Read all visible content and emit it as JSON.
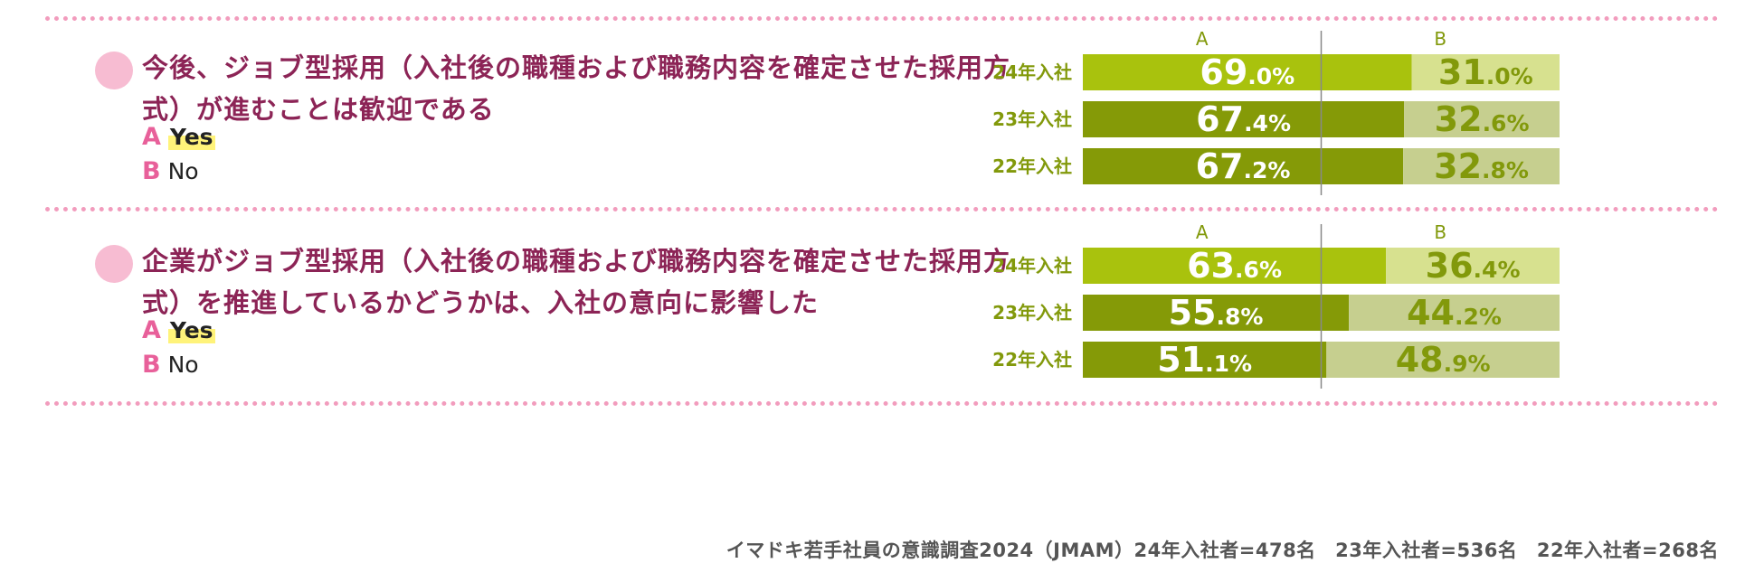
{
  "colors": {
    "a_bars": [
      "#a9c20d",
      "#859a07",
      "#859a07"
    ],
    "b_bars": [
      "#d7e18f",
      "#c6cf8f",
      "#c6cf8f"
    ],
    "row_label": "#82990b",
    "b_text": "#82990b"
  },
  "questions": [
    {
      "text": "今後、ジョブ型採用（入社後の職種および職務内容を確定させた採用方式）が進むことは歓迎である",
      "options": [
        {
          "letter": "A",
          "label": "Yes"
        },
        {
          "letter": "B",
          "label": "No"
        }
      ]
    },
    {
      "text": "企業がジョブ型採用（入社後の職種および職務内容を確定させた採用方式）を推進しているかどうかは、入社の意向に影響した",
      "options": [
        {
          "letter": "A",
          "label": "Yes"
        },
        {
          "letter": "B",
          "label": "No"
        }
      ]
    }
  ],
  "chart_data": [
    {
      "type": "bar",
      "orientation": "horizontal-stacked-100",
      "categories": [
        "24年入社",
        "23年入社",
        "22年入社"
      ],
      "series": [
        {
          "name": "A",
          "values": [
            69.0,
            67.4,
            67.2
          ]
        },
        {
          "name": "B",
          "values": [
            31.0,
            32.6,
            32.8
          ]
        }
      ],
      "xlim": [
        0,
        100
      ],
      "reference_line": 50,
      "value_labels": {
        "A": [
          [
            "69",
            ".0%"
          ],
          [
            "67",
            ".4%"
          ],
          [
            "67",
            ".2%"
          ]
        ],
        "B": [
          [
            "31",
            ".0%"
          ],
          [
            "32",
            ".6%"
          ],
          [
            "32",
            ".8%"
          ]
        ]
      }
    },
    {
      "type": "bar",
      "orientation": "horizontal-stacked-100",
      "categories": [
        "24年入社",
        "23年入社",
        "22年入社"
      ],
      "series": [
        {
          "name": "A",
          "values": [
            63.6,
            55.8,
            51.1
          ]
        },
        {
          "name": "B",
          "values": [
            36.4,
            44.2,
            48.9
          ]
        }
      ],
      "xlim": [
        0,
        100
      ],
      "reference_line": 50,
      "value_labels": {
        "A": [
          [
            "63",
            ".6%"
          ],
          [
            "55",
            ".8%"
          ],
          [
            "51",
            ".1%"
          ]
        ],
        "B": [
          [
            "36",
            ".4%"
          ],
          [
            "44",
            ".2%"
          ],
          [
            "48",
            ".9%"
          ]
        ]
      }
    }
  ],
  "footer": "イマドキ若手社員の意識調査2024（JMAM）24年入社者=478名　23年入社者=536名　22年入社者=268名"
}
